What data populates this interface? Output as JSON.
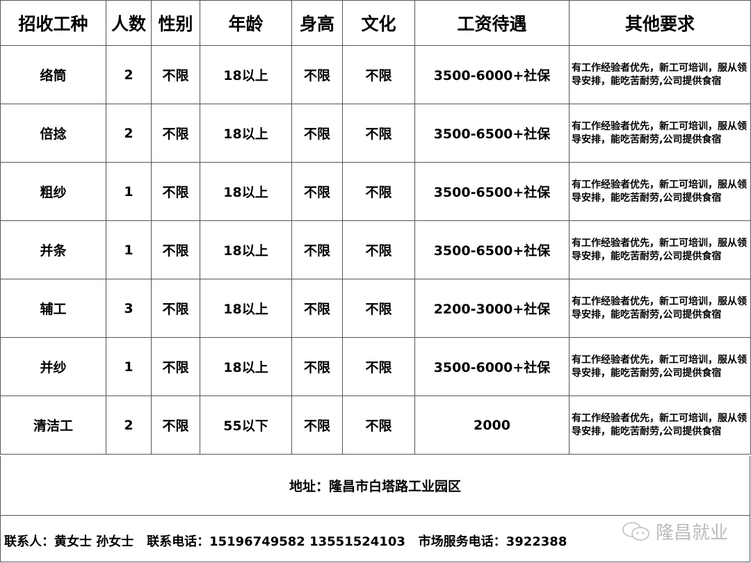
{
  "table": {
    "headers": [
      "招收工种",
      "人数",
      "性别",
      "年龄",
      "身高",
      "文化",
      "工资待遇",
      "其他要求"
    ],
    "rows": [
      [
        "络筒",
        "2",
        "不限",
        "18以上",
        "不限",
        "不限",
        "3500-6000+社保",
        "有工作经验者优先，新工可培训，服从领导安排，能吃苦耐劳,公司提供食宿"
      ],
      [
        "倍捻",
        "2",
        "不限",
        "18以上",
        "不限",
        "不限",
        "3500-6500+社保",
        "有工作经验者优先，新工可培训，服从领导安排，能吃苦耐劳,公司提供食宿"
      ],
      [
        "粗纱",
        "1",
        "不限",
        "18以上",
        "不限",
        "不限",
        "3500-6500+社保",
        "有工作经验者优先，新工可培训，服从领导安排，能吃苦耐劳,公司提供食宿"
      ],
      [
        "并条",
        "1",
        "不限",
        "18以上",
        "不限",
        "不限",
        "3500-6500+社保",
        "有工作经验者优先，新工可培训，服从领导安排，能吃苦耐劳,公司提供食宿"
      ],
      [
        "辅工",
        "3",
        "不限",
        "18以上",
        "不限",
        "不限",
        "2200-3000+社保",
        "有工作经验者优先，新工可培训，服从领导安排，能吃苦耐劳,公司提供食宿"
      ],
      [
        "并纱",
        "1",
        "不限",
        "18以上",
        "不限",
        "不限",
        "3500-6000+社保",
        "有工作经验者优先，新工可培训，服从领导安排，能吃苦耐劳,公司提供食宿"
      ],
      [
        "清洁工",
        "2",
        "不限",
        "55以下",
        "不限",
        "不限",
        "2000",
        "有工作经验者优先，新工可培训，服从领导安排，能吃苦耐劳,公司提供食宿"
      ]
    ]
  },
  "address": "地址：隆昌市白塔路工业园区",
  "contact": "联系人：黄女士 孙女士   联系电话：15196749582 13551524103   市场服务电话：3922388",
  "watermark": {
    "text": "隆昌就业",
    "icon": "wechat-icon"
  }
}
